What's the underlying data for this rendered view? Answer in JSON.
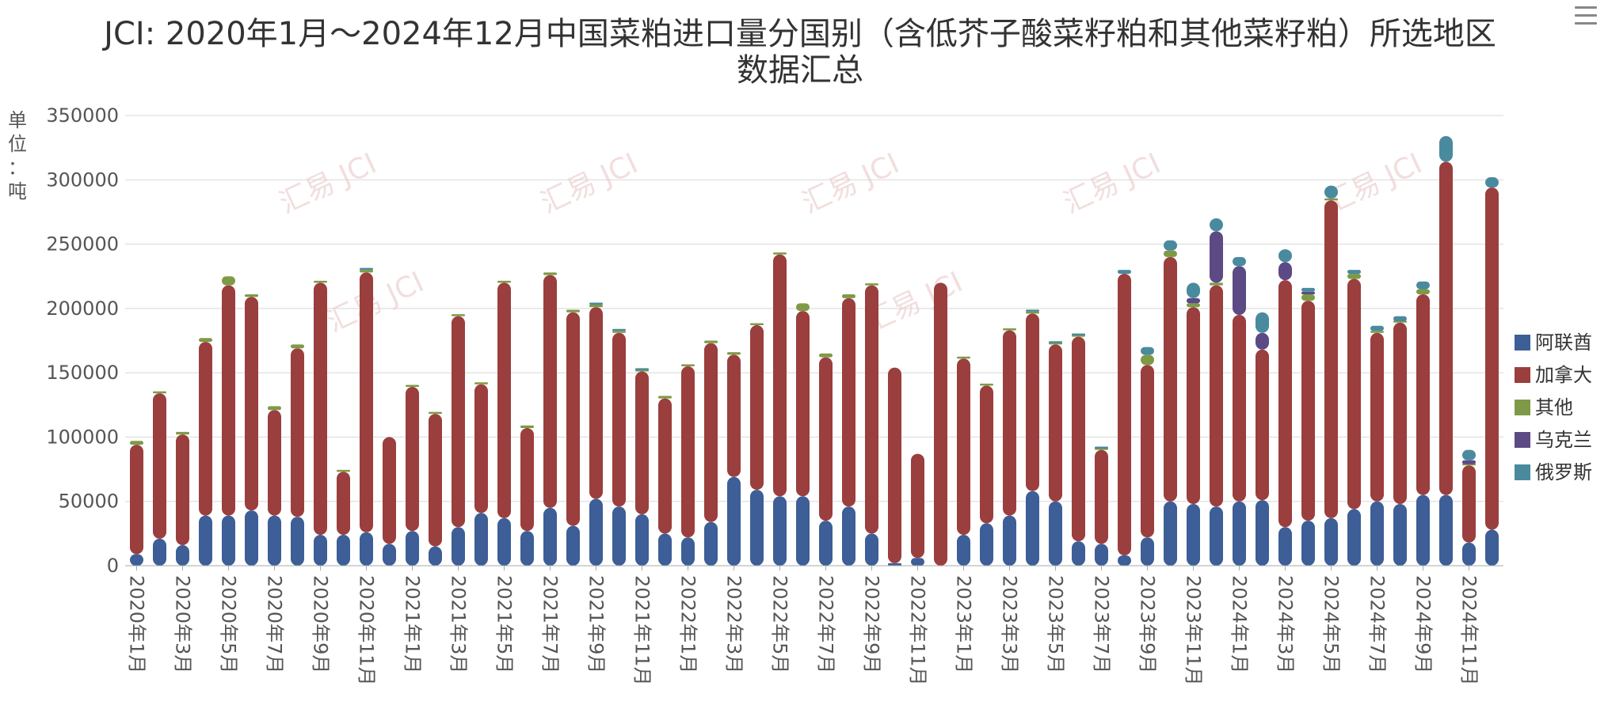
{
  "chart_data": {
    "type": "bar",
    "stacked": true,
    "title_lines": [
      "JCI: 2020年1月～2024年12月中国菜粕进口量分国别（含低芥子酸菜籽粕和其他菜籽粕）所选地区",
      "数据汇总"
    ],
    "ylabel": "单位：吨",
    "ylim": [
      0,
      350000
    ],
    "yticks": [
      "0",
      "50000",
      "100000",
      "150000",
      "200000",
      "250000",
      "300000",
      "350000"
    ],
    "grid": true,
    "legend_position": "right",
    "watermark": "汇易 JCI",
    "categories": [
      "2020年1月",
      "2020年2月",
      "2020年3月",
      "2020年4月",
      "2020年5月",
      "2020年6月",
      "2020年7月",
      "2020年8月",
      "2020年9月",
      "2020年10月",
      "2020年11月",
      "2020年12月",
      "2021年1月",
      "2021年2月",
      "2021年3月",
      "2021年4月",
      "2021年5月",
      "2021年6月",
      "2021年7月",
      "2021年8月",
      "2021年9月",
      "2021年10月",
      "2021年11月",
      "2021年12月",
      "2022年1月",
      "2022年2月",
      "2022年3月",
      "2022年4月",
      "2022年5月",
      "2022年6月",
      "2022年7月",
      "2022年8月",
      "2022年9月",
      "2022年10月",
      "2022年11月",
      "2022年12月",
      "2023年1月",
      "2023年2月",
      "2023年3月",
      "2023年4月",
      "2023年5月",
      "2023年6月",
      "2023年7月",
      "2023年8月",
      "2023年9月",
      "2023年10月",
      "2023年11月",
      "2023年12月",
      "2024年1月",
      "2024年2月",
      "2024年3月",
      "2024年4月",
      "2024年5月",
      "2024年6月",
      "2024年7月",
      "2024年8月",
      "2024年9月",
      "2024年10月",
      "2024年11月",
      "2024年12月"
    ],
    "xtick_labels": [
      "2020年1月",
      "2020年3月",
      "2020年5月",
      "2020年7月",
      "2020年9月",
      "2020年11月",
      "2021年1月",
      "2021年3月",
      "2021年5月",
      "2021年7月",
      "2021年9月",
      "2021年11月",
      "2022年1月",
      "2022年3月",
      "2022年5月",
      "2022年7月",
      "2022年9月",
      "2022年11月",
      "2023年1月",
      "2023年3月",
      "2023年5月",
      "2023年7月",
      "2023年9月",
      "2023年11月",
      "2024年1月",
      "2024年3月",
      "2024年5月",
      "2024年7月",
      "2024年9月",
      "2024年11月"
    ],
    "series": [
      {
        "name": "阿联酋",
        "color": "#3d5e96",
        "values": [
          9000,
          21000,
          16000,
          39000,
          39000,
          43000,
          39000,
          38000,
          24000,
          24000,
          26000,
          17000,
          27000,
          15000,
          30000,
          41000,
          37000,
          27000,
          45000,
          31000,
          52000,
          46000,
          40000,
          25000,
          22000,
          34000,
          69000,
          59000,
          54000,
          54000,
          35000,
          46000,
          25000,
          2000,
          6000,
          0,
          24000,
          33000,
          39000,
          58000,
          50000,
          19000,
          17000,
          8000,
          22000,
          50000,
          48000,
          46000,
          50000,
          51000,
          30000,
          35000,
          37000,
          44000,
          50000,
          48000,
          55000,
          55000,
          18000,
          28000
        ]
      },
      {
        "name": "加拿大",
        "color": "#9b3e3e",
        "values": [
          85000,
          113000,
          86000,
          135000,
          179000,
          166000,
          82000,
          131000,
          196000,
          49000,
          202000,
          83000,
          112000,
          103000,
          164000,
          100000,
          183000,
          80000,
          181000,
          166000,
          149000,
          135000,
          111000,
          105000,
          133000,
          139000,
          95000,
          128000,
          188000,
          144000,
          127000,
          162000,
          193000,
          152000,
          81000,
          220000,
          137000,
          107000,
          144000,
          138000,
          122000,
          159000,
          73000,
          219000,
          134000,
          190000,
          153000,
          172000,
          145000,
          117000,
          192000,
          171000,
          247000,
          179000,
          131000,
          141000,
          156000,
          259000,
          60000,
          266000
        ]
      },
      {
        "name": "其他",
        "color": "#7e9a46",
        "values": [
          3000,
          1500,
          2000,
          3000,
          7000,
          2000,
          3000,
          3000,
          1500,
          1000,
          2000,
          0,
          1000,
          1000,
          1000,
          1500,
          1500,
          2000,
          2000,
          2000,
          2000,
          1500,
          1000,
          2000,
          1500,
          2000,
          2000,
          1500,
          500,
          6000,
          3000,
          3000,
          1500,
          0,
          0,
          0,
          500,
          1500,
          1000,
          1500,
          1000,
          1000,
          1000,
          0,
          8000,
          5000,
          3000,
          2000,
          0,
          0,
          0,
          5000,
          1500,
          4000,
          1500,
          1000,
          4000,
          0,
          1000,
          0
        ]
      },
      {
        "name": "乌克兰",
        "color": "#5c4a85",
        "values": [
          0,
          0,
          0,
          0,
          0,
          0,
          0,
          0,
          0,
          0,
          0,
          0,
          0,
          0,
          0,
          0,
          0,
          0,
          0,
          0,
          0,
          0,
          0,
          0,
          0,
          0,
          0,
          0,
          0,
          0,
          0,
          0,
          0,
          0,
          0,
          0,
          0,
          0,
          0,
          0,
          0,
          0,
          0,
          0,
          0,
          0,
          4000,
          40000,
          38000,
          13000,
          14000,
          2000,
          0,
          0,
          0,
          0,
          0,
          0,
          3000,
          0
        ]
      },
      {
        "name": "俄罗斯",
        "color": "#4a8a9e",
        "values": [
          0,
          0,
          0,
          0,
          0,
          0,
          0,
          0,
          0,
          0,
          1000,
          0,
          0,
          0,
          0,
          0,
          0,
          0,
          0,
          0,
          1000,
          1000,
          1000,
          0,
          0,
          0,
          0,
          0,
          0,
          0,
          0,
          0,
          0,
          0,
          0,
          0,
          0,
          0,
          0,
          1000,
          1000,
          1000,
          1500,
          3000,
          6000,
          8000,
          12000,
          10000,
          7000,
          16000,
          10000,
          3000,
          10000,
          3000,
          4000,
          4000,
          6000,
          20000,
          8000,
          8000
        ]
      }
    ]
  }
}
